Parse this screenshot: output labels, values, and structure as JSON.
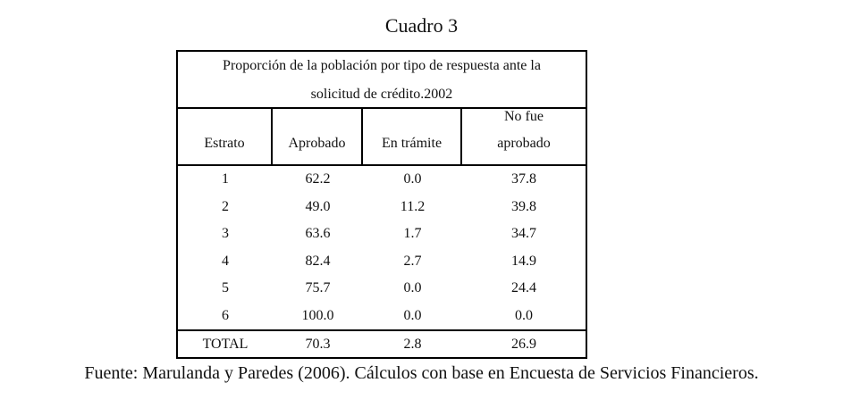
{
  "title": "Cuadro 3",
  "table": {
    "caption_line1": "Proporción de la población por tipo de respuesta ante la",
    "caption_line2": "solicitud de crédito.2002",
    "headers": {
      "estrato": "Estrato",
      "aprobado": "Aprobado",
      "en_tramite": "En trámite",
      "no_fue_line1": "No fue",
      "no_fue_line2": "aprobado"
    },
    "rows": [
      {
        "estrato": "1",
        "aprobado": "62.2",
        "en_tramite": "0.0",
        "no_aprobado": "37.8"
      },
      {
        "estrato": "2",
        "aprobado": "49.0",
        "en_tramite": "11.2",
        "no_aprobado": "39.8"
      },
      {
        "estrato": "3",
        "aprobado": "63.6",
        "en_tramite": "1.7",
        "no_aprobado": "34.7"
      },
      {
        "estrato": "4",
        "aprobado": "82.4",
        "en_tramite": "2.7",
        "no_aprobado": "14.9"
      },
      {
        "estrato": "5",
        "aprobado": "75.7",
        "en_tramite": "0.0",
        "no_aprobado": "24.4"
      },
      {
        "estrato": "6",
        "aprobado": "100.0",
        "en_tramite": "0.0",
        "no_aprobado": "0.0"
      }
    ],
    "total": {
      "estrato": "TOTAL",
      "aprobado": "70.3",
      "en_tramite": "2.8",
      "no_aprobado": "26.9"
    }
  },
  "source": "Fuente: Marulanda y Paredes (2006). Cálculos con base en Encuesta de Servicios Financieros."
}
